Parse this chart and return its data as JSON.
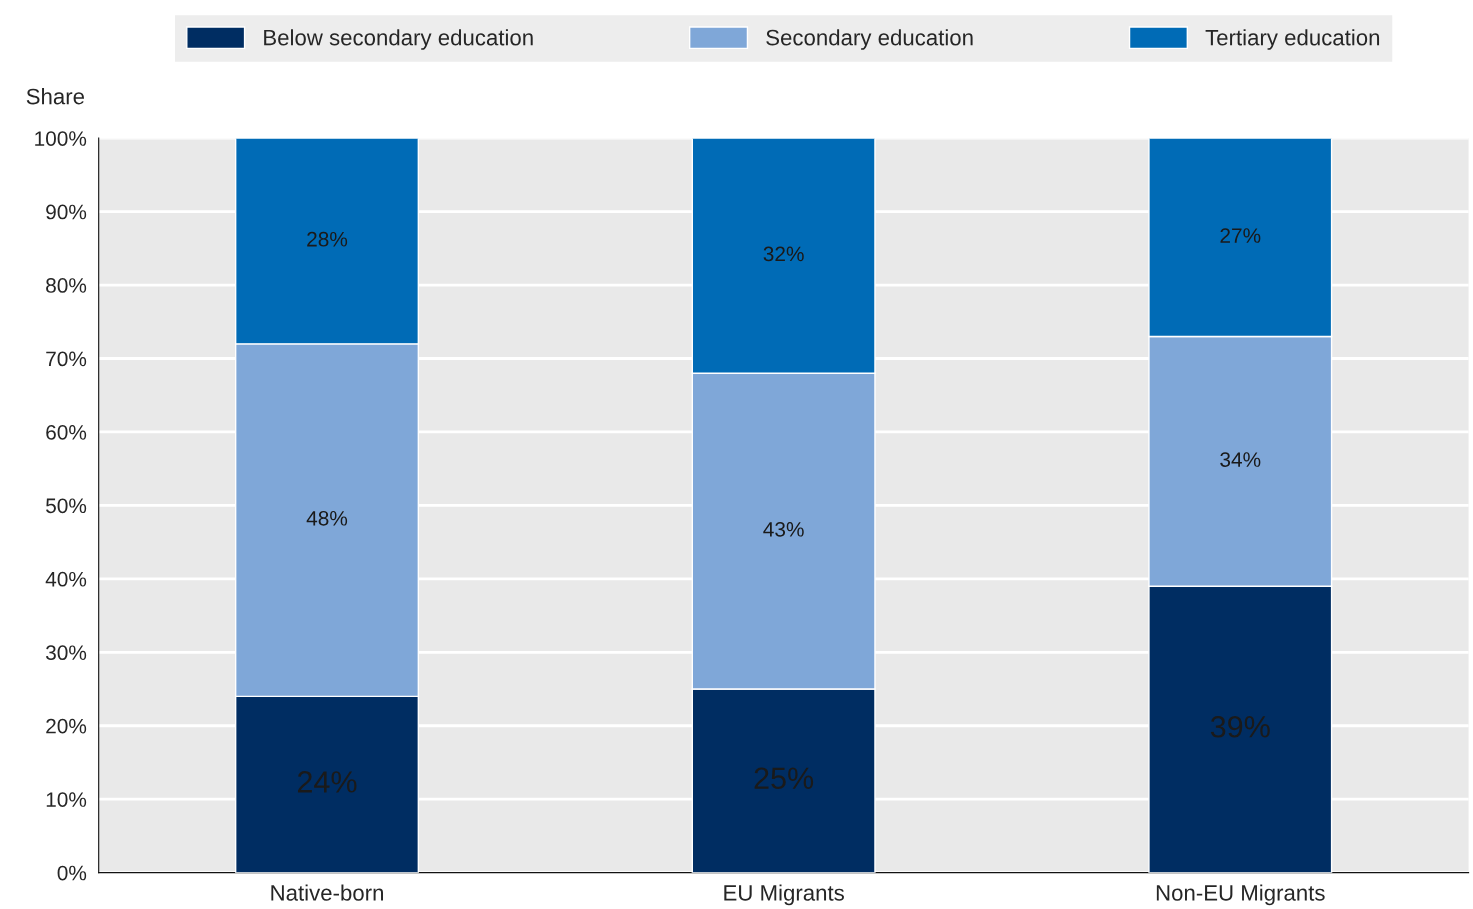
{
  "chart_data": {
    "type": "bar",
    "stacked": true,
    "ylabel": "Share",
    "categories": [
      "Native-born",
      "EU Migrants",
      "Non-EU Migrants"
    ],
    "series": [
      {
        "name": "Below secondary education",
        "color": "#002d62",
        "values": [
          24,
          25,
          39
        ],
        "value_labels": [
          "24%",
          "25%",
          "39%"
        ]
      },
      {
        "name": "Secondary education",
        "color": "#7fa7d8",
        "values": [
          48,
          43,
          34
        ],
        "value_labels": [
          "48%",
          "43%",
          "34%"
        ]
      },
      {
        "name": "Tertiary education",
        "color": "#006bb6",
        "values": [
          28,
          32,
          27
        ],
        "value_labels": [
          "28%",
          "32%",
          "27%"
        ]
      }
    ],
    "ylim": [
      0,
      100
    ],
    "yticks": [
      {
        "value": 0,
        "label": "0%"
      },
      {
        "value": 10,
        "label": "10%"
      },
      {
        "value": 20,
        "label": "20%"
      },
      {
        "value": 30,
        "label": "30%"
      },
      {
        "value": 40,
        "label": "40%"
      },
      {
        "value": 50,
        "label": "50%"
      },
      {
        "value": 60,
        "label": "60%"
      },
      {
        "value": 70,
        "label": "70%"
      },
      {
        "value": 80,
        "label": "80%"
      },
      {
        "value": 90,
        "label": "90%"
      },
      {
        "value": 100,
        "label": "100%"
      }
    ],
    "grid": "y",
    "legend": "top"
  }
}
